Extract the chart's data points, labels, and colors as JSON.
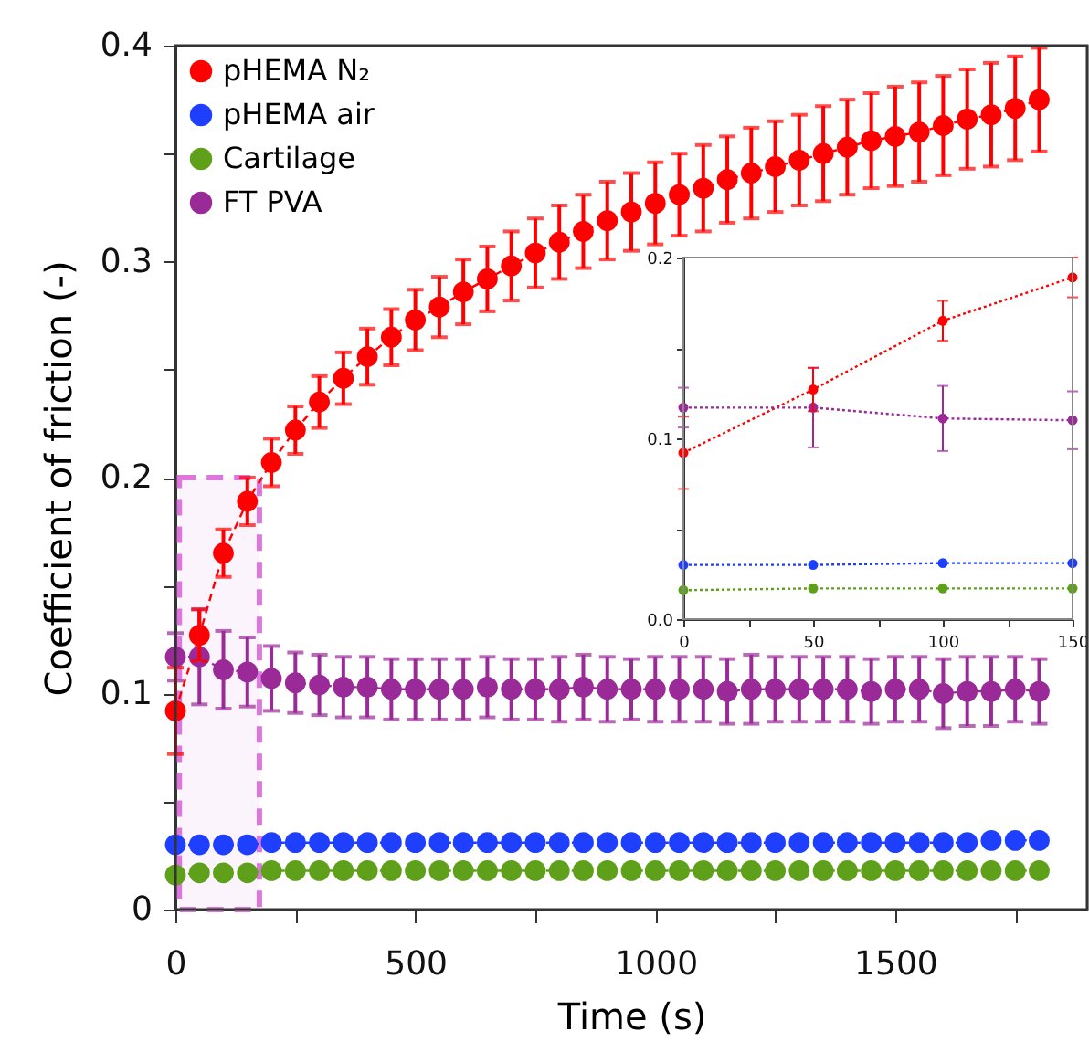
{
  "chart_data": [
    {
      "type": "line",
      "xlabel": "Time (s)",
      "ylabel": "Coefficient of friction (-)",
      "x": [
        0,
        50,
        100,
        150,
        200,
        250,
        300,
        350,
        400,
        450,
        500,
        550,
        600,
        650,
        700,
        750,
        800,
        850,
        900,
        950,
        1000,
        1050,
        1100,
        1150,
        1200,
        1250,
        1300,
        1350,
        1400,
        1450,
        1500,
        1550,
        1600,
        1650,
        1700,
        1750,
        1800
      ],
      "series": [
        {
          "name": "pHEMA N₂",
          "color": "#ff0000",
          "values": [
            0.092,
            0.127,
            0.165,
            0.189,
            0.207,
            0.222,
            0.235,
            0.246,
            0.256,
            0.265,
            0.273,
            0.279,
            0.286,
            0.292,
            0.298,
            0.304,
            0.309,
            0.314,
            0.319,
            0.323,
            0.327,
            0.331,
            0.334,
            0.338,
            0.341,
            0.344,
            0.347,
            0.35,
            0.353,
            0.356,
            0.358,
            0.36,
            0.363,
            0.366,
            0.368,
            0.371,
            0.375
          ],
          "errors": [
            0.02,
            0.012,
            0.011,
            0.011,
            0.011,
            0.011,
            0.012,
            0.012,
            0.013,
            0.013,
            0.014,
            0.014,
            0.015,
            0.015,
            0.016,
            0.016,
            0.017,
            0.017,
            0.018,
            0.018,
            0.019,
            0.019,
            0.02,
            0.02,
            0.021,
            0.021,
            0.021,
            0.022,
            0.022,
            0.022,
            0.023,
            0.023,
            0.023,
            0.023,
            0.024,
            0.024,
            0.024
          ]
        },
        {
          "name": "pHEMA air",
          "color": "#1f3fff",
          "values": [
            0.03,
            0.03,
            0.03,
            0.03,
            0.031,
            0.031,
            0.031,
            0.031,
            0.031,
            0.031,
            0.031,
            0.031,
            0.031,
            0.031,
            0.031,
            0.031,
            0.031,
            0.031,
            0.031,
            0.031,
            0.031,
            0.031,
            0.031,
            0.031,
            0.031,
            0.031,
            0.031,
            0.031,
            0.031,
            0.031,
            0.031,
            0.031,
            0.031,
            0.031,
            0.032,
            0.032,
            0.032
          ]
        },
        {
          "name": "Cartilage",
          "color": "#5fa01a",
          "values": [
            0.016,
            0.017,
            0.017,
            0.017,
            0.018,
            0.018,
            0.018,
            0.018,
            0.018,
            0.018,
            0.018,
            0.018,
            0.018,
            0.018,
            0.018,
            0.018,
            0.018,
            0.018,
            0.018,
            0.018,
            0.018,
            0.018,
            0.018,
            0.018,
            0.018,
            0.018,
            0.018,
            0.018,
            0.018,
            0.018,
            0.018,
            0.018,
            0.018,
            0.018,
            0.018,
            0.018,
            0.018
          ]
        },
        {
          "name": "FT PVA",
          "color": "#9a2a98",
          "values": [
            0.117,
            0.117,
            0.111,
            0.11,
            0.107,
            0.105,
            0.104,
            0.103,
            0.103,
            0.102,
            0.102,
            0.102,
            0.102,
            0.103,
            0.102,
            0.102,
            0.102,
            0.103,
            0.102,
            0.102,
            0.102,
            0.102,
            0.102,
            0.101,
            0.102,
            0.102,
            0.102,
            0.102,
            0.102,
            0.101,
            0.102,
            0.102,
            0.1,
            0.101,
            0.101,
            0.102,
            0.101
          ],
          "errors": [
            0.011,
            0.022,
            0.018,
            0.016,
            0.015,
            0.014,
            0.014,
            0.014,
            0.014,
            0.014,
            0.014,
            0.014,
            0.014,
            0.014,
            0.014,
            0.014,
            0.015,
            0.015,
            0.015,
            0.014,
            0.015,
            0.015,
            0.015,
            0.015,
            0.016,
            0.015,
            0.015,
            0.015,
            0.015,
            0.015,
            0.015,
            0.015,
            0.016,
            0.016,
            0.016,
            0.015,
            0.015
          ]
        }
      ],
      "xlim": [
        0,
        1900
      ],
      "xticks": [
        0,
        {
          "value": 250,
          "label": null
        },
        500,
        {
          "value": 750,
          "label": null
        },
        1000,
        {
          "value": 1250,
          "label": null
        },
        1500,
        {
          "value": 1750,
          "label": null
        }
      ],
      "ylim": [
        0,
        0.4
      ],
      "yticks": [
        0,
        {
          "value": 0.05,
          "label": null
        },
        0.1,
        {
          "value": 0.15,
          "label": null
        },
        0.2,
        {
          "value": 0.25,
          "label": null
        },
        0.3,
        {
          "value": 0.35,
          "label": null
        },
        0.4
      ],
      "bands": [
        {
          "axis": "x",
          "from": 8,
          "to": 175,
          "color": "#dd77dd"
        }
      ],
      "marker": "circle",
      "line_style": "dashed",
      "grid": false,
      "legend": "top left"
    },
    {
      "type": "line",
      "x": [
        0,
        50,
        100,
        150
      ],
      "series": [
        {
          "color": "#ff0000",
          "values": [
            0.092,
            0.127,
            0.165,
            0.189
          ],
          "errors": [
            0.02,
            0.012,
            0.011,
            0.011
          ]
        },
        {
          "color": "#1f3fff",
          "values": [
            0.03,
            0.03,
            0.031,
            0.031
          ]
        },
        {
          "color": "#5fa01a",
          "values": [
            0.016,
            0.017,
            0.017,
            0.017
          ]
        },
        {
          "color": "#9a2a98",
          "values": [
            0.117,
            0.117,
            0.111,
            0.11
          ],
          "errors": [
            0.011,
            0.022,
            0.018,
            0.016
          ]
        }
      ],
      "xlim": [
        0,
        150
      ],
      "xticks": [
        0,
        {
          "value": 25,
          "label": null
        },
        50,
        {
          "value": 75,
          "label": null
        },
        100,
        {
          "value": 125,
          "label": null
        },
        150
      ],
      "ylim": [
        0,
        0.2
      ],
      "yticks": [
        {
          "value": 0,
          "label": "0.0"
        },
        {
          "value": 0.05,
          "label": null
        },
        {
          "value": 0.1,
          "label": "0.1"
        },
        {
          "value": 0.15,
          "label": null
        },
        {
          "value": 0.2,
          "label": "0.2"
        }
      ],
      "marker": "circle",
      "line_style": "dotted",
      "grid": false,
      "legend": false
    }
  ]
}
